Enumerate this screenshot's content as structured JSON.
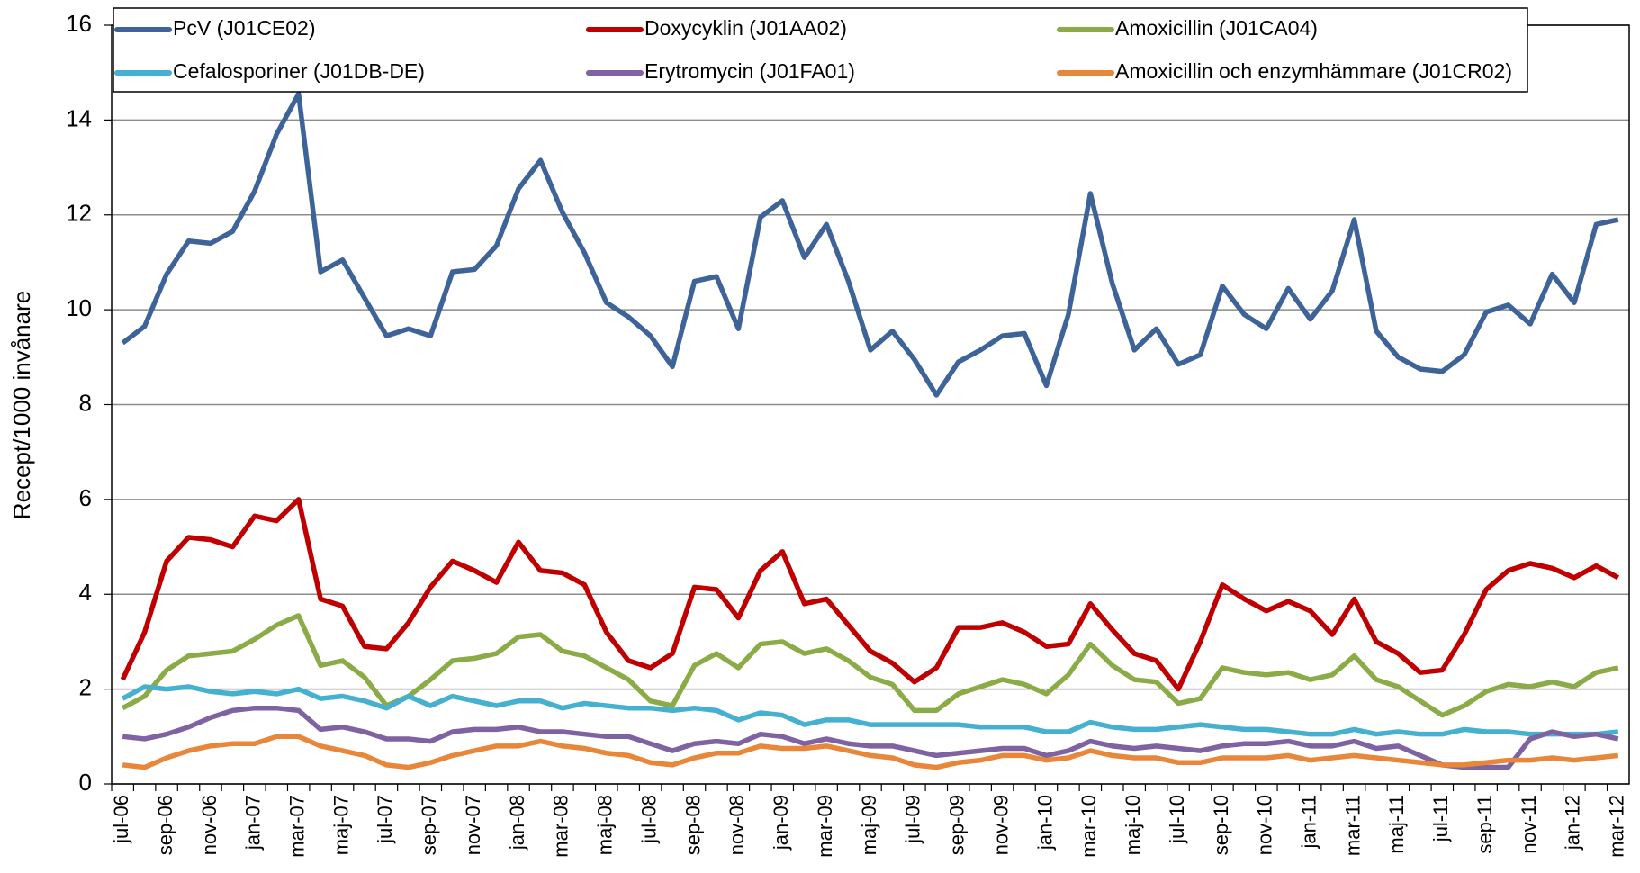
{
  "chart_data": {
    "type": "line",
    "ylabel": "Recept/1000 invånare",
    "categories": [
      "jul-06",
      null,
      "sep-06",
      null,
      "nov-06",
      null,
      "jan-07",
      null,
      "mar-07",
      null,
      "maj-07",
      null,
      "jul-07",
      null,
      "sep-07",
      null,
      "nov-07",
      null,
      "jan-08",
      null,
      "mar-08",
      null,
      "maj-08",
      null,
      "jul-08",
      null,
      "sep-08",
      null,
      "nov-08",
      null,
      "jan-09",
      null,
      "mar-09",
      null,
      "maj-09",
      null,
      "jul-09",
      null,
      "sep-09",
      null,
      "nov-09",
      null,
      "jan-10",
      null,
      "mar-10",
      null,
      "maj-10",
      null,
      "jul-10",
      null,
      "sep-10",
      null,
      "nov-10",
      null,
      "jan-11",
      null,
      "mar-11",
      null,
      "maj-11",
      null,
      "jul-11",
      null,
      "sep-11",
      null,
      "nov-11",
      null,
      "jan-12",
      null,
      "mar-12"
    ],
    "series": [
      {
        "name": "PcV (J01CE02)",
        "color": "#3d6399",
        "values": [
          9.3,
          9.65,
          10.75,
          11.45,
          11.4,
          11.65,
          12.5,
          13.7,
          14.55,
          10.8,
          11.05,
          10.25,
          9.45,
          9.6,
          9.45,
          10.8,
          10.85,
          11.35,
          12.55,
          13.15,
          12.05,
          11.2,
          10.15,
          9.85,
          9.45,
          8.8,
          10.6,
          10.7,
          9.6,
          11.95,
          12.3,
          11.1,
          11.8,
          10.6,
          9.15,
          9.55,
          8.95,
          8.2,
          8.9,
          9.15,
          9.45,
          9.5,
          8.4,
          9.9,
          12.45,
          10.55,
          9.15,
          9.6,
          8.85,
          9.05,
          10.5,
          9.9,
          9.6,
          10.45,
          9.8,
          10.4,
          11.9,
          9.55,
          9.0,
          8.75,
          8.7,
          9.05,
          9.95,
          10.1,
          9.7,
          10.75,
          10.15,
          11.8,
          11.9
        ]
      },
      {
        "name": "Doxycyklin (J01AA02)",
        "color": "#c00000",
        "values": [
          2.2,
          3.2,
          4.7,
          5.2,
          5.15,
          5.0,
          5.65,
          5.55,
          6.0,
          3.9,
          3.75,
          2.9,
          2.85,
          3.4,
          4.15,
          4.7,
          4.5,
          4.25,
          5.1,
          4.5,
          4.45,
          4.2,
          3.2,
          2.6,
          2.45,
          2.75,
          4.15,
          4.1,
          3.5,
          4.5,
          4.9,
          3.8,
          3.9,
          3.35,
          2.8,
          2.55,
          2.15,
          2.45,
          3.3,
          3.3,
          3.4,
          3.2,
          2.9,
          2.95,
          3.8,
          3.25,
          2.75,
          2.6,
          2.0,
          3.0,
          4.2,
          3.9,
          3.65,
          3.85,
          3.65,
          3.15,
          3.9,
          3.0,
          2.75,
          2.35,
          2.4,
          3.15,
          4.1,
          4.5,
          4.65,
          4.55,
          4.35,
          4.6,
          4.35
        ]
      },
      {
        "name": "Amoxicillin (J01CA04)",
        "color": "#8bab47",
        "values": [
          1.6,
          1.85,
          2.4,
          2.7,
          2.75,
          2.8,
          3.05,
          3.35,
          3.55,
          2.5,
          2.6,
          2.25,
          1.65,
          1.85,
          2.2,
          2.6,
          2.65,
          2.75,
          3.1,
          3.15,
          2.8,
          2.7,
          2.45,
          2.2,
          1.75,
          1.65,
          2.5,
          2.75,
          2.45,
          2.95,
          3.0,
          2.75,
          2.85,
          2.6,
          2.25,
          2.1,
          1.55,
          1.55,
          1.9,
          2.05,
          2.2,
          2.1,
          1.9,
          2.3,
          2.95,
          2.5,
          2.2,
          2.15,
          1.7,
          1.8,
          2.45,
          2.35,
          2.3,
          2.35,
          2.2,
          2.3,
          2.7,
          2.2,
          2.05,
          1.75,
          1.45,
          1.65,
          1.95,
          2.1,
          2.05,
          2.15,
          2.05,
          2.35,
          2.45
        ]
      },
      {
        "name": "Cefalosporiner (J01DB-DE)",
        "color": "#45b0cf",
        "values": [
          1.8,
          2.05,
          2.0,
          2.05,
          1.95,
          1.9,
          1.95,
          1.9,
          2.0,
          1.8,
          1.85,
          1.75,
          1.6,
          1.85,
          1.65,
          1.85,
          1.75,
          1.65,
          1.75,
          1.75,
          1.6,
          1.7,
          1.65,
          1.6,
          1.6,
          1.55,
          1.6,
          1.55,
          1.35,
          1.5,
          1.45,
          1.25,
          1.35,
          1.35,
          1.25,
          1.25,
          1.25,
          1.25,
          1.25,
          1.2,
          1.2,
          1.2,
          1.1,
          1.1,
          1.3,
          1.2,
          1.15,
          1.15,
          1.2,
          1.25,
          1.2,
          1.15,
          1.15,
          1.1,
          1.05,
          1.05,
          1.15,
          1.05,
          1.1,
          1.05,
          1.05,
          1.15,
          1.1,
          1.1,
          1.05,
          1.05,
          1.05,
          1.05,
          1.1
        ]
      },
      {
        "name": "Erytromycin (J01FA01)",
        "color": "#7f62a1",
        "values": [
          1.0,
          0.95,
          1.05,
          1.2,
          1.4,
          1.55,
          1.6,
          1.6,
          1.55,
          1.15,
          1.2,
          1.1,
          0.95,
          0.95,
          0.9,
          1.1,
          1.15,
          1.15,
          1.2,
          1.1,
          1.1,
          1.05,
          1.0,
          1.0,
          0.85,
          0.7,
          0.85,
          0.9,
          0.85,
          1.05,
          1.0,
          0.85,
          0.95,
          0.85,
          0.8,
          0.8,
          0.7,
          0.6,
          0.65,
          0.7,
          0.75,
          0.75,
          0.6,
          0.7,
          0.9,
          0.8,
          0.75,
          0.8,
          0.75,
          0.7,
          0.8,
          0.85,
          0.85,
          0.9,
          0.8,
          0.8,
          0.9,
          0.75,
          0.8,
          0.6,
          0.4,
          0.35,
          0.35,
          0.35,
          0.95,
          1.1,
          1.0,
          1.05,
          0.95
        ]
      },
      {
        "name": "Amoxicillin och enzymhämmare (J01CR02)",
        "color": "#e8873a",
        "values": [
          0.4,
          0.35,
          0.55,
          0.7,
          0.8,
          0.85,
          0.85,
          1.0,
          1.0,
          0.8,
          0.7,
          0.6,
          0.4,
          0.35,
          0.45,
          0.6,
          0.7,
          0.8,
          0.8,
          0.9,
          0.8,
          0.75,
          0.65,
          0.6,
          0.45,
          0.4,
          0.55,
          0.65,
          0.65,
          0.8,
          0.75,
          0.75,
          0.8,
          0.7,
          0.6,
          0.55,
          0.4,
          0.35,
          0.45,
          0.5,
          0.6,
          0.6,
          0.5,
          0.55,
          0.7,
          0.6,
          0.55,
          0.55,
          0.45,
          0.45,
          0.55,
          0.55,
          0.55,
          0.6,
          0.5,
          0.55,
          0.6,
          0.55,
          0.5,
          0.45,
          0.4,
          0.4,
          0.45,
          0.5,
          0.5,
          0.55,
          0.5,
          0.55,
          0.6
        ]
      }
    ],
    "ylim": [
      0,
      16
    ],
    "yticks": [
      0,
      2,
      4,
      6,
      8,
      10,
      12,
      14,
      16
    ],
    "grid": true,
    "legend": "top"
  }
}
